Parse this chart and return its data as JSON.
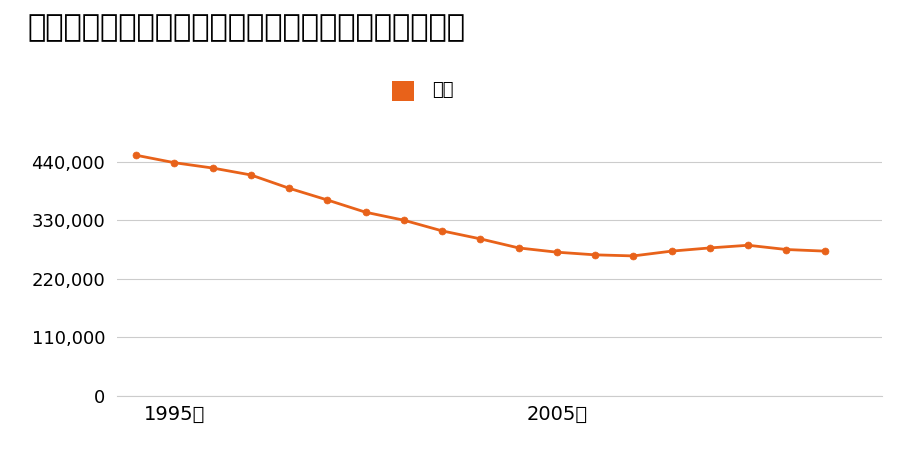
{
  "title": "大阪府大阪市東住吉区山坂１丁目３１番２の地価推移",
  "legend_label": "価格",
  "years": [
    1994,
    1995,
    1996,
    1997,
    1998,
    1999,
    2000,
    2001,
    2002,
    2003,
    2004,
    2005,
    2006,
    2007,
    2008,
    2009,
    2010,
    2011,
    2012
  ],
  "values": [
    452000,
    438000,
    428000,
    415000,
    390000,
    368000,
    345000,
    330000,
    310000,
    295000,
    278000,
    270000,
    265000,
    263000,
    272000,
    278000,
    283000,
    275000,
    272000
  ],
  "line_color": "#e8621a",
  "marker_color": "#e8621a",
  "bg_color": "#ffffff",
  "grid_color": "#cccccc",
  "yticks": [
    0,
    110000,
    220000,
    330000,
    440000
  ],
  "xtick_labels": [
    "1995年",
    "2005年"
  ],
  "xtick_positions": [
    1995,
    2005
  ],
  "ylim": [
    0,
    490000
  ],
  "xlim": [
    1993.5,
    2013.5
  ],
  "title_fontsize": 22,
  "legend_fontsize": 13,
  "ytick_fontsize": 13,
  "xtick_fontsize": 14
}
